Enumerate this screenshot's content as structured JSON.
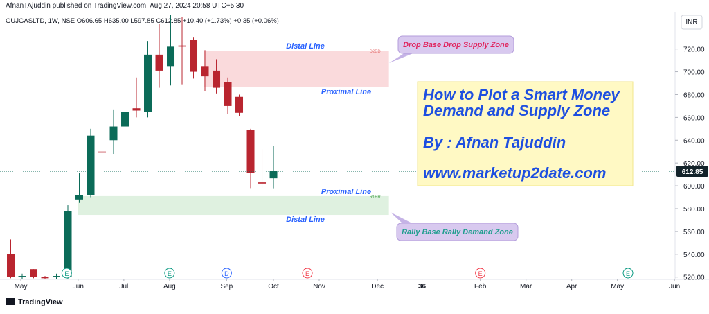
{
  "chart_data": {
    "type": "candlestick",
    "publisher_line": "AfnanTAjuddin published on TradingView.com, Aug 27, 2024 20:58 UTC+5:30",
    "symbol_line": "GUJGASLTD, 1W, NSE  O606.65  H635.00  L597.85  C612.85  +10.40 (+1.73%)  +0.35 (+0.06%)",
    "currency": "INR",
    "footer": "TradingView",
    "open": [
      540,
      520,
      527,
      520,
      520,
      520,
      588,
      592,
      630,
      640,
      652,
      668,
      665,
      715,
      705,
      723,
      728,
      705,
      701,
      691,
      678,
      649,
      603,
      606.65
    ],
    "high": [
      553,
      523,
      527,
      521,
      523,
      583,
      611,
      650,
      690,
      667,
      670,
      695,
      727,
      742,
      750,
      748,
      730,
      719,
      711,
      695,
      680,
      650,
      632,
      635
    ],
    "low": [
      519,
      518,
      519,
      518,
      518,
      518,
      585,
      590,
      620,
      628,
      643,
      660,
      660,
      686,
      688,
      689,
      694,
      683,
      681,
      663,
      661,
      598,
      598,
      597.85
    ],
    "close": [
      520,
      521,
      520,
      519,
      521,
      578,
      592,
      644,
      629,
      652,
      665,
      666,
      715,
      701,
      722,
      722,
      700,
      696,
      686,
      670,
      664,
      611,
      602,
      612.85
    ],
    "up_color": "#0b6b58",
    "down_color": "#b9252f",
    "xlim": [
      -0.94,
      58.15
    ],
    "xticks": [
      {
        "value": 0.88,
        "label": "May"
      },
      {
        "value": 5.9,
        "label": "Jun"
      },
      {
        "value": 9.9,
        "label": "Jul"
      },
      {
        "value": 13.9,
        "label": "Aug"
      },
      {
        "value": 18.9,
        "label": "Sep"
      },
      {
        "value": 23,
        "label": "Oct"
      },
      {
        "value": 27,
        "label": "Nov"
      },
      {
        "value": 32.1,
        "label": "Dec"
      },
      36,
      {
        "value": 41.1,
        "label": "Feb"
      },
      {
        "value": 45.1,
        "label": "Mar"
      },
      {
        "value": 49.1,
        "label": "Apr"
      },
      {
        "value": 53.1,
        "label": "May"
      },
      {
        "value": 58.1,
        "label": "Jun"
      }
    ],
    "ylim": [
      518,
      752
    ],
    "yticks": [
      {
        "value": 520,
        "label": "520.00"
      },
      {
        "value": 540,
        "label": "540.00"
      },
      {
        "value": 560,
        "label": "560.00"
      },
      {
        "value": 580,
        "label": "580.00"
      },
      {
        "value": 600,
        "label": "600.00"
      },
      {
        "value": 620,
        "label": "620.00"
      },
      {
        "value": 640,
        "label": "640.00"
      },
      {
        "value": 660,
        "label": "660.00"
      },
      {
        "value": 680,
        "label": "680.00"
      },
      {
        "value": 700,
        "label": "700.00"
      },
      {
        "value": 720,
        "label": "720.00"
      }
    ],
    "zones": [
      {
        "tag": "D2BD",
        "top": 718.5,
        "bottom": 686.5,
        "x_start": 16.9,
        "x_end": 33.1,
        "color": "#f8cdd0",
        "tag_color": "#e57373",
        "top_label": "Distal Line",
        "bottom_label": "Proximal Line",
        "callout": "Drop Base Drop Supply Zone",
        "callout_color": "#e0245e"
      },
      {
        "tag": "R1BR",
        "top": 591,
        "bottom": 574.5,
        "x_start": 5.9,
        "x_end": 33.1,
        "color": "#d4ecd5",
        "tag_color": "#43a047",
        "top_label": "Proximal Line",
        "bottom_label": "Distal Line",
        "callout": "Rally Base Rally Demand Zone",
        "callout_color": "#1f9e8e"
      }
    ],
    "overlay_text": [
      "How to Plot a Smart Money",
      "Demand and Supply Zone",
      "By : Afnan Tajuddin",
      "www.marketup2date.com"
    ],
    "events": [
      {
        "label": "E",
        "x": 4.9,
        "color": "#089981"
      },
      {
        "label": "E",
        "x": 13.9,
        "color": "#089981"
      },
      {
        "label": "D",
        "x": 18.9,
        "color": "#2962ff"
      },
      {
        "label": "E",
        "x": 25.97,
        "color": "#f23645"
      },
      {
        "label": "E",
        "x": 41.1,
        "color": "#f23645"
      },
      {
        "label": "E",
        "x": 54.03,
        "color": "#089981"
      }
    ]
  }
}
